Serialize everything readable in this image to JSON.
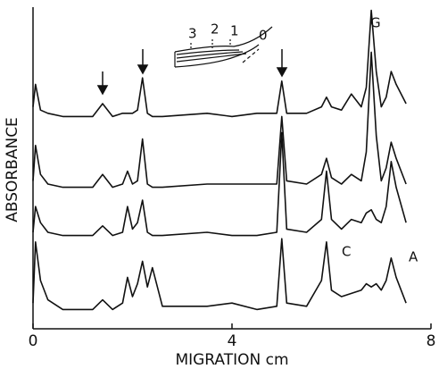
{
  "chart_data": {
    "type": "line",
    "xlabel": "MIGRATION cm",
    "ylabel": "ABSORBANCE",
    "xlim": [
      0,
      8
    ],
    "xticks": [
      0,
      4,
      8
    ],
    "ylim": [
      0,
      100
    ],
    "x": [
      0,
      0.05,
      0.15,
      0.3,
      0.6,
      1.2,
      1.4,
      1.6,
      1.8,
      1.9,
      2.0,
      2.1,
      2.2,
      2.3,
      2.4,
      2.6,
      3.5,
      4.0,
      4.5,
      4.9,
      5.0,
      5.1,
      5.5,
      5.8,
      5.9,
      6.0,
      6.2,
      6.4,
      6.6,
      6.7,
      6.8,
      6.9,
      7.0,
      7.1,
      7.2,
      7.3,
      7.5
    ],
    "series": [
      {
        "color": "#111111",
        "values": [
          69,
          76,
          68,
          67,
          66,
          66,
          70,
          66,
          67,
          67,
          67,
          68,
          78,
          67,
          66,
          66,
          67,
          66,
          67,
          67,
          77,
          67,
          67,
          69,
          72,
          69,
          68,
          73,
          69,
          75,
          99,
          80,
          69,
          72,
          80,
          76,
          70
        ]
      },
      {
        "color": "#111111",
        "values": [
          46,
          57,
          48,
          45,
          44,
          44,
          48,
          44,
          45,
          49,
          45,
          46,
          59,
          45,
          44,
          44,
          45,
          45,
          45,
          45,
          66,
          46,
          45,
          48,
          53,
          47,
          45,
          48,
          46,
          55,
          86,
          60,
          46,
          50,
          58,
          53,
          45
        ]
      },
      {
        "color": "#111111",
        "values": [
          30,
          38,
          33,
          30,
          29,
          29,
          32,
          29,
          30,
          38,
          31,
          33,
          40,
          30,
          29,
          29,
          30,
          29,
          29,
          30,
          61,
          31,
          30,
          34,
          49,
          34,
          31,
          34,
          33,
          36,
          37,
          34,
          33,
          38,
          52,
          44,
          33
        ]
      },
      {
        "color": "#111111",
        "values": [
          8,
          27,
          15,
          9,
          6,
          6,
          9,
          6,
          8,
          16,
          10,
          14,
          21,
          13,
          19,
          7,
          7,
          8,
          6,
          7,
          28,
          8,
          7,
          15,
          27,
          12,
          10,
          11,
          12,
          14,
          13,
          14,
          12,
          15,
          22,
          16,
          8
        ]
      }
    ],
    "annotations": [
      "G",
      "C",
      "A"
    ],
    "inset_labels": [
      "3",
      "2",
      "1",
      "0"
    ]
  }
}
